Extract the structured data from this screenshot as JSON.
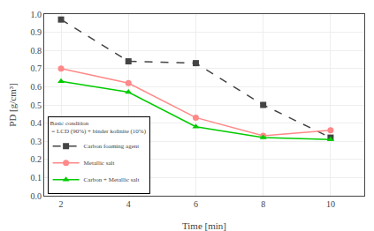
{
  "chart_data": {
    "type": "line",
    "x": [
      2,
      4,
      6,
      8,
      10
    ],
    "series": [
      {
        "name": "Carbon foaming agent",
        "color": "#444444",
        "marker": "square",
        "line_style": "dashed",
        "values": [
          0.97,
          0.74,
          0.73,
          0.5,
          0.32
        ]
      },
      {
        "name": "Metallic salt",
        "color": "#ff8888",
        "marker": "circle",
        "line_style": "solid",
        "values": [
          0.7,
          0.62,
          0.43,
          0.33,
          0.36
        ]
      },
      {
        "name": "Carbon + Metallic salt",
        "color": "#00cc00",
        "marker": "triangle-up",
        "line_style": "solid",
        "values": [
          0.63,
          0.57,
          0.38,
          0.32,
          0.31
        ]
      }
    ],
    "xlabel": "Time [min]",
    "ylabel": "PD [g/cm³]",
    "legend_title": "Basic condition\n = LCD (90%) + binder kolinite (10%)",
    "xlim": [
      1.5,
      11.0
    ],
    "ylim": [
      0.0,
      1.0
    ],
    "xticks": [
      2,
      4,
      6,
      8,
      10
    ],
    "yticks": [
      {
        "value": 0.0,
        "label": "0.0"
      },
      0.1,
      0.2,
      0.3,
      0.4,
      0.5,
      0.6,
      0.7,
      0.8,
      0.9,
      {
        "value": 1.0,
        "label": "1.0"
      }
    ],
    "grid": true,
    "legend": "lower left"
  }
}
